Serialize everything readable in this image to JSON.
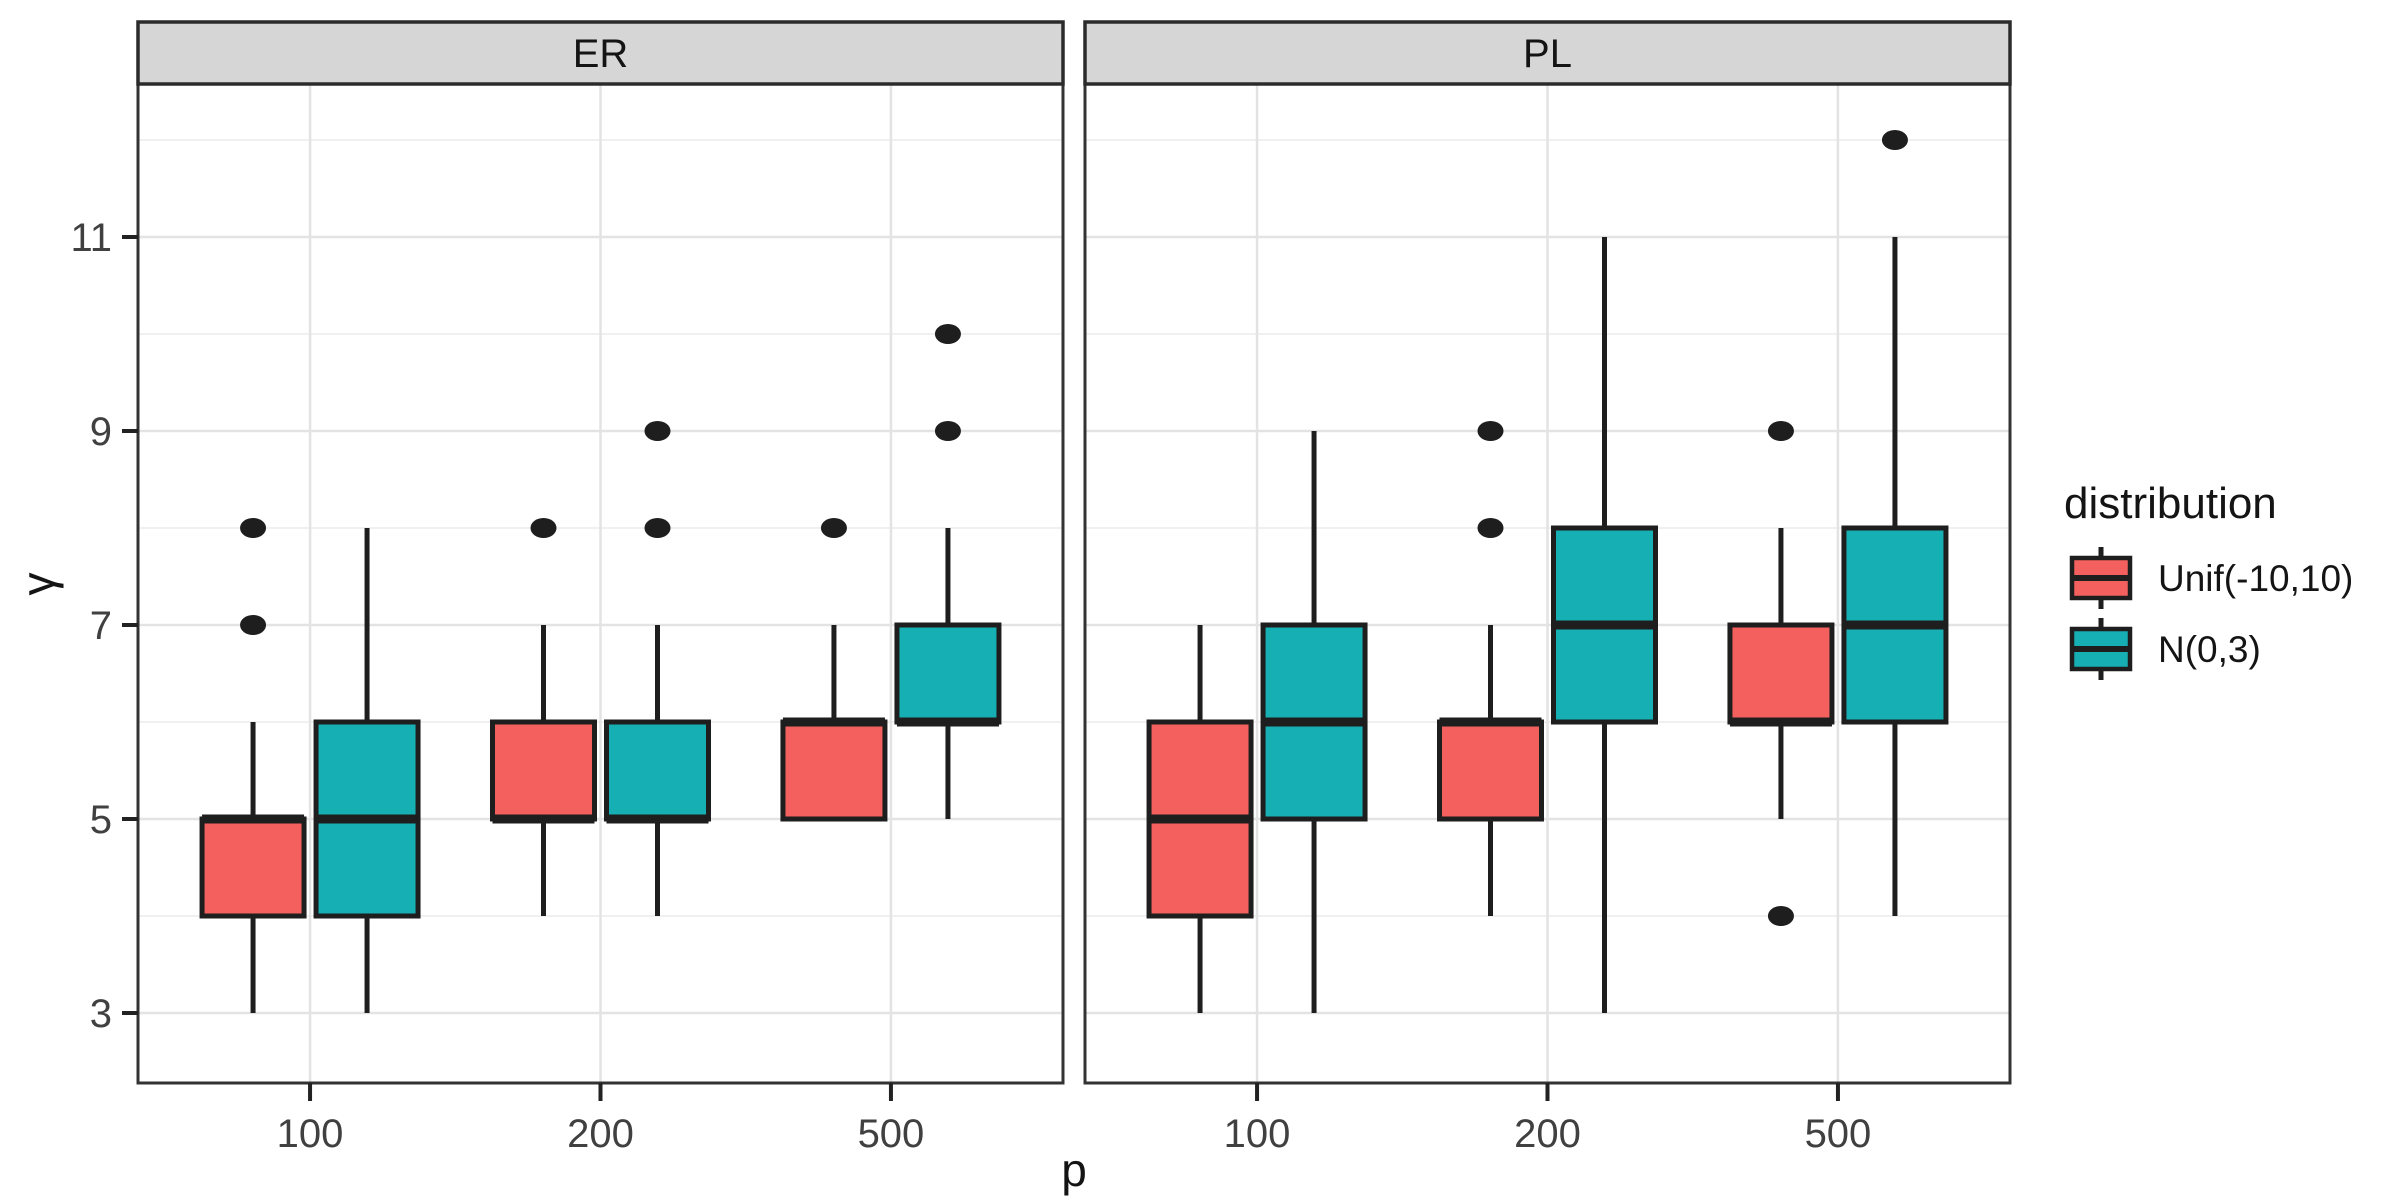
{
  "chart_data": {
    "type": "boxplot",
    "xlabel": "p",
    "ylabel": "γ",
    "y_ticks": [
      3,
      5,
      7,
      9,
      11
    ],
    "y_minor": [
      4,
      6,
      8,
      10,
      12
    ],
    "ylim": [
      2.28,
      12.58
    ],
    "x_categories": [
      "100",
      "200",
      "500"
    ],
    "legend": {
      "title": "distribution",
      "entries": [
        {
          "label": "Unif(-10,10)",
          "color": "#F4605D"
        },
        {
          "label": "N(0,3)",
          "color": "#16AFB3"
        }
      ]
    },
    "facets": [
      {
        "label": "ER",
        "groups": [
          {
            "x": "100",
            "boxes": [
              {
                "series": "Unif(-10,10)",
                "low": 3,
                "q1": 4,
                "median": 5,
                "q3": 5,
                "high": 6,
                "outliers": [
                  7,
                  8
                ]
              },
              {
                "series": "N(0,3)",
                "low": 3,
                "q1": 4,
                "median": 5,
                "q3": 6,
                "high": 8,
                "outliers": []
              }
            ]
          },
          {
            "x": "200",
            "boxes": [
              {
                "series": "Unif(-10,10)",
                "low": 4,
                "q1": 5,
                "median": 5,
                "q3": 6,
                "high": 7,
                "outliers": [
                  8
                ]
              },
              {
                "series": "N(0,3)",
                "low": 4,
                "q1": 5,
                "median": 5,
                "q3": 6,
                "high": 7,
                "outliers": [
                  8,
                  9
                ]
              }
            ]
          },
          {
            "x": "500",
            "boxes": [
              {
                "series": "Unif(-10,10)",
                "low": 5,
                "q1": 5,
                "median": 6,
                "q3": 6,
                "high": 7,
                "outliers": [
                  8
                ]
              },
              {
                "series": "N(0,3)",
                "low": 5,
                "q1": 6,
                "median": 6,
                "q3": 7,
                "high": 8,
                "outliers": [
                  9,
                  10
                ]
              }
            ]
          }
        ]
      },
      {
        "label": "PL",
        "groups": [
          {
            "x": "100",
            "boxes": [
              {
                "series": "Unif(-10,10)",
                "low": 3,
                "q1": 4,
                "median": 5,
                "q3": 6,
                "high": 7,
                "outliers": []
              },
              {
                "series": "N(0,3)",
                "low": 3,
                "q1": 5,
                "median": 6,
                "q3": 7,
                "high": 9,
                "outliers": []
              }
            ]
          },
          {
            "x": "200",
            "boxes": [
              {
                "series": "Unif(-10,10)",
                "low": 4,
                "q1": 5,
                "median": 6,
                "q3": 6,
                "high": 7,
                "outliers": [
                  8,
                  9
                ]
              },
              {
                "series": "N(0,3)",
                "low": 3,
                "q1": 6,
                "median": 7,
                "q3": 8,
                "high": 11,
                "outliers": []
              }
            ]
          },
          {
            "x": "500",
            "boxes": [
              {
                "series": "Unif(-10,10)",
                "low": 5,
                "q1": 6,
                "median": 6,
                "q3": 7,
                "high": 8,
                "outliers": [
                  4,
                  9
                ]
              },
              {
                "series": "N(0,3)",
                "low": 4,
                "q1": 6,
                "median": 7,
                "q3": 8,
                "high": 11,
                "outliers": [
                  12
                ]
              }
            ]
          }
        ]
      }
    ],
    "colors": {
      "box_border": "#1E1E1E",
      "outlier": "#1E1E1E",
      "strip_fill": "#D6D6D6",
      "strip_border": "#2B2B2B",
      "panel_border": "#333333",
      "grid_major": "#E3E3E3",
      "grid_minor": "#F0F0F0",
      "panel_bg": "#FFFFFF"
    },
    "layout_hints": {
      "grid": true,
      "legend_position": "right",
      "facet_strips": "top"
    }
  }
}
